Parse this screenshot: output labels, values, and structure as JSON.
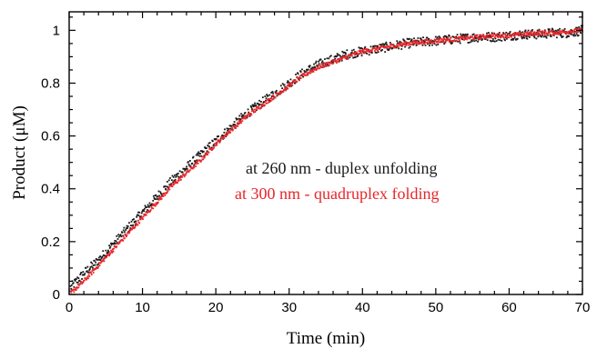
{
  "chart_data": {
    "type": "scatter",
    "title": "",
    "xlabel": "Time (min)",
    "ylabel": "Product (μM)",
    "xlim": [
      0,
      70
    ],
    "ylim": [
      0,
      1.07
    ],
    "xticks": [
      0,
      10,
      20,
      30,
      40,
      50,
      60,
      70
    ],
    "yticks": [
      0,
      0.2,
      0.4,
      0.6,
      0.8,
      1
    ],
    "grid": false,
    "legend": "none",
    "series": [
      {
        "color": "#1a1a1a",
        "x": [
          0,
          2,
          4,
          6,
          8,
          10,
          12,
          14,
          16,
          18,
          20,
          22,
          24,
          26,
          28,
          30,
          32,
          34,
          36,
          38,
          40,
          42,
          44,
          46,
          48,
          50,
          52,
          54,
          56,
          58,
          60,
          62,
          64,
          66,
          68,
          70
        ],
        "y": [
          0.02,
          0.08,
          0.13,
          0.19,
          0.25,
          0.31,
          0.37,
          0.43,
          0.48,
          0.53,
          0.58,
          0.63,
          0.68,
          0.72,
          0.76,
          0.8,
          0.84,
          0.87,
          0.89,
          0.91,
          0.92,
          0.93,
          0.94,
          0.95,
          0.955,
          0.96,
          0.965,
          0.97,
          0.975,
          0.975,
          0.98,
          0.985,
          0.985,
          0.99,
          0.99,
          1.0
        ]
      },
      {
        "color": "#e8262a",
        "x": [
          0,
          2,
          4,
          6,
          8,
          10,
          12,
          14,
          16,
          18,
          20,
          22,
          24,
          26,
          28,
          30,
          32,
          34,
          36,
          38,
          40,
          42,
          44,
          46,
          48,
          50,
          52,
          54,
          56,
          58,
          60,
          62,
          64,
          66,
          68,
          70
        ],
        "y": [
          0.0,
          0.05,
          0.11,
          0.17,
          0.23,
          0.29,
          0.35,
          0.41,
          0.46,
          0.51,
          0.57,
          0.62,
          0.67,
          0.71,
          0.75,
          0.79,
          0.83,
          0.86,
          0.88,
          0.9,
          0.92,
          0.93,
          0.94,
          0.95,
          0.955,
          0.96,
          0.965,
          0.97,
          0.975,
          0.98,
          0.98,
          0.985,
          0.99,
          0.99,
          0.995,
          1.0
        ]
      }
    ],
    "annotations": [
      {
        "text": "at 260 nm  - duplex unfolding",
        "color": "#1a1a1a"
      },
      {
        "text": "at 300 nm - quadruplex folding",
        "color": "#e8262a"
      }
    ]
  }
}
